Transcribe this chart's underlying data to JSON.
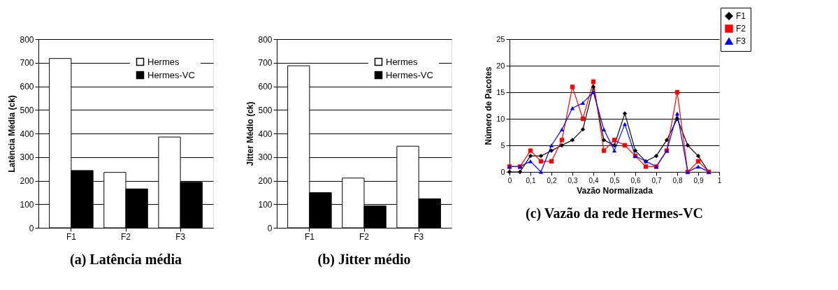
{
  "chart_data": [
    {
      "type": "bar",
      "title": "(a) Latência média",
      "ylabel": "Latência Média (ck)",
      "categories": [
        "F1",
        "F2",
        "F3"
      ],
      "series": [
        {
          "name": "Hermes",
          "color": "#ffffff",
          "values": [
            718,
            235,
            385
          ]
        },
        {
          "name": "Hermes-VC",
          "color": "#000000",
          "values": [
            243,
            165,
            193
          ]
        }
      ],
      "ylim": [
        0,
        800
      ],
      "yticks": [
        0,
        100,
        200,
        300,
        400,
        500,
        600,
        700,
        800
      ],
      "grid": "y",
      "legend": "top right"
    },
    {
      "type": "bar",
      "title": "(b) Jitter médio",
      "ylabel": "Jitter Médio (ck)",
      "categories": [
        "F1",
        "F2",
        "F3"
      ],
      "series": [
        {
          "name": "Hermes",
          "color": "#ffffff",
          "values": [
            687,
            211,
            346
          ]
        },
        {
          "name": "Hermes-VC",
          "color": "#000000",
          "values": [
            149,
            93,
            123
          ]
        }
      ],
      "ylim": [
        0,
        800
      ],
      "yticks": [
        0,
        100,
        200,
        300,
        400,
        500,
        600,
        700,
        800
      ],
      "grid": "y",
      "legend": "top right"
    },
    {
      "type": "line",
      "title": "(c) Vazão da rede Hermes-VC",
      "xlabel": "Vazão Normalizada",
      "ylabel": "Número de Pacotes",
      "x": [
        0,
        0.05,
        0.1,
        0.15,
        0.2,
        0.25,
        0.3,
        0.35,
        0.4,
        0.45,
        0.5,
        0.55,
        0.6,
        0.65,
        0.7,
        0.75,
        0.8,
        0.85,
        0.9,
        0.95
      ],
      "series": [
        {
          "name": "F1",
          "color": "#000000",
          "marker": "diamond",
          "values": [
            0,
            0,
            3,
            3,
            4,
            5,
            6,
            8,
            16,
            6,
            5,
            11,
            4,
            2,
            3,
            6,
            10,
            5,
            3,
            0
          ]
        },
        {
          "name": "F2",
          "color": "#ff0000",
          "marker": "square",
          "values": [
            1,
            1,
            4,
            2,
            2,
            6,
            16,
            10,
            17,
            4,
            6,
            5,
            3,
            1,
            1,
            4,
            15,
            0,
            2,
            0
          ]
        },
        {
          "name": "F3",
          "color": "#0000ff",
          "marker": "triangle",
          "values": [
            1,
            1,
            2,
            0,
            5,
            8,
            12,
            13,
            15,
            8,
            4,
            9,
            3,
            2,
            1,
            4,
            11,
            0,
            1,
            0
          ]
        }
      ],
      "xlim": [
        0,
        1
      ],
      "xticks": [
        0,
        {
          "value": 0.1,
          "label": "0,1"
        },
        {
          "value": 0.2,
          "label": "0,2"
        },
        {
          "value": 0.3,
          "label": "0,3"
        },
        {
          "value": 0.4,
          "label": "0,4"
        },
        {
          "value": 0.5,
          "label": "0,5"
        },
        {
          "value": 0.6,
          "label": "0,6"
        },
        {
          "value": 0.7,
          "label": "0,7"
        },
        {
          "value": 0.8,
          "label": "0,8"
        },
        {
          "value": 0.9,
          "label": "0,9"
        },
        1
      ],
      "ylim": [
        0,
        25
      ],
      "yticks": [
        0,
        5,
        10,
        15,
        20,
        25
      ],
      "grid": "y",
      "legend": "top right"
    }
  ]
}
